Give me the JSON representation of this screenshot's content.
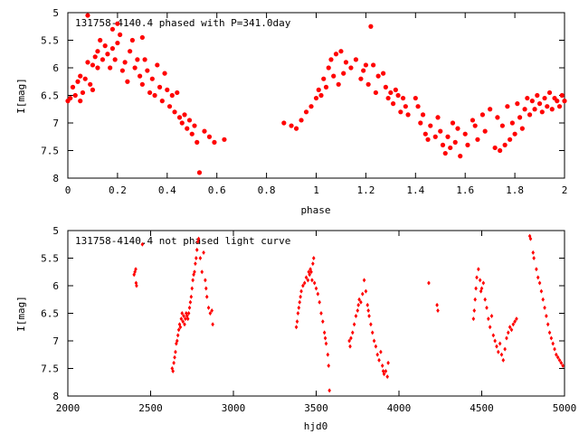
{
  "chart_data": [
    {
      "type": "scatter",
      "title": "131758-4140.4 phased with P=341.0day",
      "xlabel": "phase",
      "ylabel": "I[mag]",
      "xlim": [
        0,
        2
      ],
      "ylim": [
        5,
        8
      ],
      "y_inverted": true,
      "grid": false,
      "marker_color": "#ff0000",
      "x_ticks": [
        "0",
        "0.2",
        "0.4",
        "0.6",
        "0.8",
        "1",
        "1.2",
        "1.4",
        "1.6",
        "1.8",
        "2"
      ],
      "y_ticks": [
        "5",
        "5.5",
        "6",
        "6.5",
        "7",
        "7.5",
        "8"
      ],
      "points": [
        [
          0.0,
          6.6
        ],
        [
          0.01,
          6.55
        ],
        [
          0.02,
          6.35
        ],
        [
          0.03,
          6.5
        ],
        [
          0.04,
          6.25
        ],
        [
          0.05,
          6.6
        ],
        [
          0.05,
          6.15
        ],
        [
          0.06,
          6.45
        ],
        [
          0.07,
          6.2
        ],
        [
          0.08,
          5.9
        ],
        [
          0.08,
          5.05
        ],
        [
          0.09,
          6.3
        ],
        [
          0.1,
          5.95
        ],
        [
          0.1,
          6.4
        ],
        [
          0.11,
          5.8
        ],
        [
          0.12,
          5.7
        ],
        [
          0.12,
          6.0
        ],
        [
          0.13,
          5.5
        ],
        [
          0.14,
          5.85
        ],
        [
          0.15,
          5.6
        ],
        [
          0.16,
          5.75
        ],
        [
          0.17,
          6.0
        ],
        [
          0.18,
          5.65
        ],
        [
          0.18,
          5.3
        ],
        [
          0.19,
          5.85
        ],
        [
          0.2,
          5.55
        ],
        [
          0.2,
          5.2
        ],
        [
          0.21,
          5.4
        ],
        [
          0.22,
          6.05
        ],
        [
          0.23,
          5.9
        ],
        [
          0.24,
          6.25
        ],
        [
          0.25,
          5.7
        ],
        [
          0.26,
          5.5
        ],
        [
          0.27,
          6.0
        ],
        [
          0.28,
          5.85
        ],
        [
          0.29,
          6.15
        ],
        [
          0.3,
          5.45
        ],
        [
          0.3,
          6.3
        ],
        [
          0.31,
          5.85
        ],
        [
          0.32,
          6.05
        ],
        [
          0.33,
          6.45
        ],
        [
          0.34,
          6.2
        ],
        [
          0.35,
          6.5
        ],
        [
          0.36,
          5.95
        ],
        [
          0.37,
          6.35
        ],
        [
          0.38,
          6.6
        ],
        [
          0.39,
          6.1
        ],
        [
          0.4,
          6.4
        ],
        [
          0.41,
          6.7
        ],
        [
          0.42,
          6.5
        ],
        [
          0.43,
          6.8
        ],
        [
          0.44,
          6.45
        ],
        [
          0.45,
          6.9
        ],
        [
          0.46,
          7.0
        ],
        [
          0.47,
          6.85
        ],
        [
          0.48,
          7.1
        ],
        [
          0.49,
          6.95
        ],
        [
          0.5,
          7.2
        ],
        [
          0.51,
          7.05
        ],
        [
          0.52,
          7.35
        ],
        [
          0.53,
          7.9
        ],
        [
          0.55,
          7.15
        ],
        [
          0.57,
          7.25
        ],
        [
          0.59,
          7.35
        ],
        [
          0.63,
          7.3
        ],
        [
          0.87,
          7.0
        ],
        [
          0.9,
          7.05
        ],
        [
          0.92,
          7.1
        ],
        [
          0.94,
          6.95
        ],
        [
          0.96,
          6.8
        ],
        [
          0.98,
          6.7
        ],
        [
          1.0,
          6.55
        ],
        [
          1.01,
          6.4
        ],
        [
          1.02,
          6.5
        ],
        [
          1.03,
          6.2
        ],
        [
          1.04,
          6.35
        ],
        [
          1.05,
          6.0
        ],
        [
          1.06,
          5.85
        ],
        [
          1.07,
          6.15
        ],
        [
          1.08,
          5.75
        ],
        [
          1.09,
          6.3
        ],
        [
          1.1,
          5.7
        ],
        [
          1.11,
          6.1
        ],
        [
          1.12,
          5.9
        ],
        [
          1.14,
          6.0
        ],
        [
          1.16,
          5.85
        ],
        [
          1.18,
          6.2
        ],
        [
          1.19,
          6.05
        ],
        [
          1.2,
          5.95
        ],
        [
          1.21,
          6.3
        ],
        [
          1.22,
          5.25
        ],
        [
          1.23,
          5.95
        ],
        [
          1.24,
          6.45
        ],
        [
          1.25,
          6.15
        ],
        [
          1.27,
          6.1
        ],
        [
          1.28,
          6.35
        ],
        [
          1.29,
          6.55
        ],
        [
          1.3,
          6.45
        ],
        [
          1.31,
          6.65
        ],
        [
          1.32,
          6.4
        ],
        [
          1.33,
          6.5
        ],
        [
          1.34,
          6.8
        ],
        [
          1.35,
          6.55
        ],
        [
          1.36,
          6.7
        ],
        [
          1.37,
          6.85
        ],
        [
          1.4,
          6.55
        ],
        [
          1.41,
          6.7
        ],
        [
          1.42,
          7.0
        ],
        [
          1.43,
          6.85
        ],
        [
          1.44,
          7.2
        ],
        [
          1.45,
          7.3
        ],
        [
          1.46,
          7.05
        ],
        [
          1.48,
          7.25
        ],
        [
          1.49,
          6.9
        ],
        [
          1.5,
          7.15
        ],
        [
          1.51,
          7.4
        ],
        [
          1.52,
          7.55
        ],
        [
          1.53,
          7.25
        ],
        [
          1.54,
          7.45
        ],
        [
          1.55,
          7.0
        ],
        [
          1.56,
          7.35
        ],
        [
          1.57,
          7.1
        ],
        [
          1.58,
          7.6
        ],
        [
          1.6,
          7.2
        ],
        [
          1.61,
          7.4
        ],
        [
          1.63,
          6.95
        ],
        [
          1.64,
          7.05
        ],
        [
          1.65,
          7.3
        ],
        [
          1.67,
          6.85
        ],
        [
          1.68,
          7.15
        ],
        [
          1.7,
          6.75
        ],
        [
          1.72,
          7.45
        ],
        [
          1.73,
          6.9
        ],
        [
          1.74,
          7.5
        ],
        [
          1.75,
          7.05
        ],
        [
          1.76,
          7.4
        ],
        [
          1.77,
          6.7
        ],
        [
          1.78,
          7.3
        ],
        [
          1.79,
          7.0
        ],
        [
          1.8,
          7.2
        ],
        [
          1.81,
          6.65
        ],
        [
          1.82,
          6.9
        ],
        [
          1.83,
          7.1
        ],
        [
          1.84,
          6.75
        ],
        [
          1.85,
          6.55
        ],
        [
          1.86,
          6.85
        ],
        [
          1.87,
          6.6
        ],
        [
          1.88,
          6.75
        ],
        [
          1.89,
          6.5
        ],
        [
          1.9,
          6.65
        ],
        [
          1.91,
          6.8
        ],
        [
          1.92,
          6.55
        ],
        [
          1.93,
          6.7
        ],
        [
          1.94,
          6.45
        ],
        [
          1.95,
          6.75
        ],
        [
          1.96,
          6.55
        ],
        [
          1.97,
          6.6
        ],
        [
          1.98,
          6.7
        ],
        [
          1.99,
          6.5
        ],
        [
          2.0,
          6.6
        ]
      ]
    },
    {
      "type": "scatter",
      "title": "131758-4140.4 not phased light curve",
      "xlabel": "hjd0",
      "ylabel": "I[mag]",
      "xlim": [
        2000,
        5000
      ],
      "ylim": [
        5,
        8
      ],
      "y_inverted": true,
      "grid": false,
      "marker_color": "#ff0000",
      "x_ticks": [
        "2000",
        "2500",
        "3000",
        "3500",
        "4000",
        "4500",
        "5000"
      ],
      "y_ticks": [
        "5",
        "5.5",
        "6",
        "6.5",
        "7",
        "7.5",
        "8"
      ],
      "points": [
        [
          2400,
          5.8
        ],
        [
          2405,
          5.75
        ],
        [
          2410,
          5.7
        ],
        [
          2412,
          5.95
        ],
        [
          2415,
          6.0
        ],
        [
          2450,
          5.25
        ],
        [
          2630,
          7.5
        ],
        [
          2635,
          7.55
        ],
        [
          2640,
          7.4
        ],
        [
          2645,
          7.3
        ],
        [
          2650,
          7.2
        ],
        [
          2655,
          7.05
        ],
        [
          2660,
          7.0
        ],
        [
          2665,
          6.9
        ],
        [
          2670,
          6.8
        ],
        [
          2675,
          6.7
        ],
        [
          2680,
          6.75
        ],
        [
          2685,
          6.6
        ],
        [
          2690,
          6.5
        ],
        [
          2695,
          6.65
        ],
        [
          2700,
          6.55
        ],
        [
          2705,
          6.7
        ],
        [
          2710,
          6.6
        ],
        [
          2715,
          6.5
        ],
        [
          2720,
          6.55
        ],
        [
          2725,
          6.6
        ],
        [
          2730,
          6.5
        ],
        [
          2735,
          6.4
        ],
        [
          2740,
          6.3
        ],
        [
          2745,
          6.2
        ],
        [
          2750,
          6.05
        ],
        [
          2755,
          5.9
        ],
        [
          2760,
          5.8
        ],
        [
          2765,
          5.75
        ],
        [
          2770,
          5.6
        ],
        [
          2775,
          5.5
        ],
        [
          2780,
          5.35
        ],
        [
          2785,
          5.2
        ],
        [
          2790,
          5.15
        ],
        [
          2800,
          5.5
        ],
        [
          2810,
          5.75
        ],
        [
          2820,
          5.4
        ],
        [
          2830,
          5.9
        ],
        [
          2835,
          6.05
        ],
        [
          2840,
          6.2
        ],
        [
          2850,
          6.4
        ],
        [
          2860,
          6.5
        ],
        [
          2870,
          6.45
        ],
        [
          2875,
          6.7
        ],
        [
          3380,
          6.75
        ],
        [
          3385,
          6.65
        ],
        [
          3390,
          6.5
        ],
        [
          3395,
          6.4
        ],
        [
          3400,
          6.3
        ],
        [
          3405,
          6.2
        ],
        [
          3410,
          6.1
        ],
        [
          3420,
          6.0
        ],
        [
          3430,
          5.95
        ],
        [
          3440,
          5.85
        ],
        [
          3450,
          5.9
        ],
        [
          3455,
          5.75
        ],
        [
          3460,
          5.8
        ],
        [
          3465,
          5.7
        ],
        [
          3470,
          5.75
        ],
        [
          3475,
          5.9
        ],
        [
          3480,
          5.6
        ],
        [
          3485,
          5.5
        ],
        [
          3490,
          5.95
        ],
        [
          3500,
          6.05
        ],
        [
          3510,
          6.15
        ],
        [
          3520,
          6.3
        ],
        [
          3530,
          6.5
        ],
        [
          3540,
          6.65
        ],
        [
          3550,
          6.85
        ],
        [
          3555,
          6.95
        ],
        [
          3560,
          7.05
        ],
        [
          3570,
          7.25
        ],
        [
          3575,
          7.45
        ],
        [
          3580,
          7.9
        ],
        [
          3700,
          7.0
        ],
        [
          3705,
          7.1
        ],
        [
          3710,
          6.95
        ],
        [
          3720,
          6.85
        ],
        [
          3730,
          6.7
        ],
        [
          3740,
          6.55
        ],
        [
          3750,
          6.45
        ],
        [
          3755,
          6.35
        ],
        [
          3760,
          6.25
        ],
        [
          3770,
          6.3
        ],
        [
          3780,
          6.15
        ],
        [
          3790,
          5.9
        ],
        [
          3800,
          6.1
        ],
        [
          3810,
          6.35
        ],
        [
          3815,
          6.45
        ],
        [
          3820,
          6.55
        ],
        [
          3830,
          6.7
        ],
        [
          3840,
          6.85
        ],
        [
          3850,
          7.0
        ],
        [
          3860,
          7.1
        ],
        [
          3870,
          7.25
        ],
        [
          3880,
          7.35
        ],
        [
          3890,
          7.2
        ],
        [
          3900,
          7.45
        ],
        [
          3905,
          7.55
        ],
        [
          3910,
          7.6
        ],
        [
          3920,
          7.55
        ],
        [
          3930,
          7.65
        ],
        [
          3935,
          7.4
        ],
        [
          4180,
          5.95
        ],
        [
          4230,
          6.35
        ],
        [
          4235,
          6.45
        ],
        [
          4450,
          6.6
        ],
        [
          4455,
          6.45
        ],
        [
          4460,
          6.25
        ],
        [
          4465,
          6.05
        ],
        [
          4470,
          5.85
        ],
        [
          4480,
          5.7
        ],
        [
          4490,
          5.9
        ],
        [
          4495,
          6.1
        ],
        [
          4500,
          6.05
        ],
        [
          4510,
          5.95
        ],
        [
          4520,
          6.25
        ],
        [
          4530,
          6.4
        ],
        [
          4540,
          6.6
        ],
        [
          4550,
          6.75
        ],
        [
          4560,
          6.55
        ],
        [
          4570,
          6.9
        ],
        [
          4580,
          7.0
        ],
        [
          4590,
          7.1
        ],
        [
          4600,
          7.2
        ],
        [
          4610,
          7.05
        ],
        [
          4620,
          7.25
        ],
        [
          4630,
          7.35
        ],
        [
          4640,
          7.15
        ],
        [
          4650,
          6.95
        ],
        [
          4660,
          6.85
        ],
        [
          4670,
          6.75
        ],
        [
          4680,
          6.8
        ],
        [
          4690,
          6.7
        ],
        [
          4700,
          6.65
        ],
        [
          4710,
          6.6
        ],
        [
          4790,
          5.1
        ],
        [
          4795,
          5.15
        ],
        [
          4810,
          5.4
        ],
        [
          4815,
          5.5
        ],
        [
          4830,
          5.7
        ],
        [
          4840,
          5.85
        ],
        [
          4850,
          5.95
        ],
        [
          4860,
          6.1
        ],
        [
          4870,
          6.25
        ],
        [
          4880,
          6.4
        ],
        [
          4890,
          6.55
        ],
        [
          4900,
          6.7
        ],
        [
          4910,
          6.85
        ],
        [
          4920,
          6.95
        ],
        [
          4930,
          7.05
        ],
        [
          4940,
          7.15
        ],
        [
          4950,
          7.25
        ],
        [
          4960,
          7.3
        ],
        [
          4970,
          7.35
        ],
        [
          4980,
          7.4
        ],
        [
          4990,
          7.45
        ]
      ]
    }
  ]
}
